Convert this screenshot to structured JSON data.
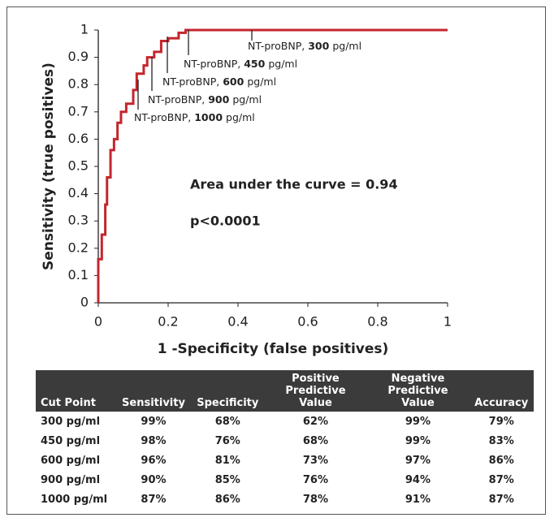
{
  "chart_data": {
    "type": "line",
    "x_label": "1 -Specificity (false positives)",
    "y_label": "Sensitivity (true positives)",
    "x": [
      0,
      0,
      0.01,
      0.01,
      0.02,
      0.02,
      0.025,
      0.025,
      0.035,
      0.035,
      0.045,
      0.045,
      0.055,
      0.055,
      0.065,
      0.065,
      0.08,
      0.08,
      0.1,
      0.1,
      0.11,
      0.11,
      0.13,
      0.13,
      0.14,
      0.14,
      0.16,
      0.16,
      0.18,
      0.18,
      0.2,
      0.2,
      0.23,
      0.23,
      0.25,
      0.25,
      1
    ],
    "values": [
      0,
      0.16,
      0.16,
      0.25,
      0.25,
      0.36,
      0.36,
      0.46,
      0.46,
      0.56,
      0.56,
      0.6,
      0.6,
      0.66,
      0.66,
      0.7,
      0.7,
      0.73,
      0.73,
      0.78,
      0.78,
      0.84,
      0.84,
      0.87,
      0.87,
      0.9,
      0.9,
      0.92,
      0.92,
      0.96,
      0.96,
      0.97,
      0.97,
      0.99,
      0.99,
      1,
      1
    ],
    "color": "#c4262e",
    "xlim": [
      0,
      1
    ],
    "xticks": [
      0,
      0.2,
      0.4,
      0.6,
      0.8,
      1
    ],
    "ylim": [
      0,
      1
    ],
    "yticks": [
      0,
      0.1,
      0.2,
      0.3,
      0.4,
      0.5,
      0.6,
      0.7,
      0.8,
      0.9,
      1
    ],
    "annotations": [
      {
        "prefix": "NT-proBNP,",
        "cutoff": "300",
        "unit": "pg/ml"
      },
      {
        "prefix": "NT-proBNP,",
        "cutoff": "450",
        "unit": "pg/ml"
      },
      {
        "prefix": "NT-proBNP,",
        "cutoff": "600",
        "unit": "pg/ml"
      },
      {
        "prefix": "NT-proBNP,",
        "cutoff": "900",
        "unit": "pg/ml"
      },
      {
        "prefix": "NT-proBNP,",
        "cutoff": "1000",
        "unit": "pg/ml"
      }
    ],
    "notes": [
      "Area under the curve = 0.94",
      "p<0.0001"
    ]
  },
  "table": {
    "header": [
      "Cut Point",
      "Sensitivity",
      "Specificity",
      "Positive Predictive Value",
      "Negative Predictive Value",
      "Accuracy"
    ],
    "rows": [
      [
        "300 pg/ml",
        "99%",
        "68%",
        "62%",
        "99%",
        "79%"
      ],
      [
        "450 pg/ml",
        "98%",
        "76%",
        "68%",
        "99%",
        "83%"
      ],
      [
        "600 pg/ml",
        "96%",
        "81%",
        "73%",
        "97%",
        "86%"
      ],
      [
        "900 pg/ml",
        "90%",
        "85%",
        "76%",
        "94%",
        "87%"
      ],
      [
        "1000 pg/ml",
        "87%",
        "86%",
        "78%",
        "91%",
        "87%"
      ]
    ]
  }
}
